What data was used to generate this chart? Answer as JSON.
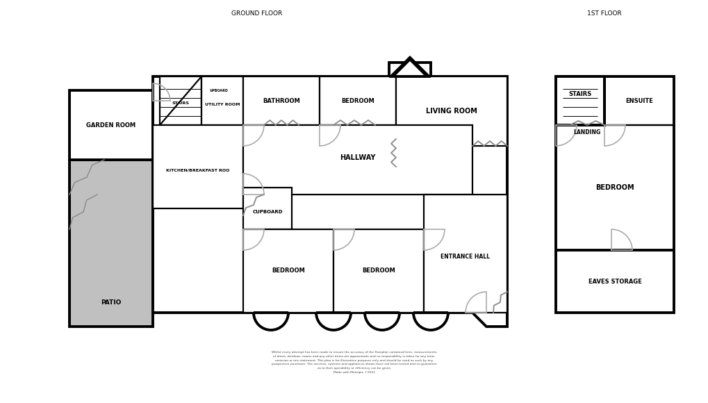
{
  "ground_floor_label": "GROUND FLOOR",
  "first_floor_label": "1ST FLOOR",
  "disclaimer": "Whilst every attempt has been made to ensure the accuracy of the floorplan contained here, measurements\nof doors, windows, rooms and any other items are approximate and no responsibility is taken for any error,\nomission or mis-statement. This plan is for illustrative purposes only and should be used as such by any\nprospective purchaser. The services, systems and appliances shown have not been tested and no guarantee\nas to their operability or efficiency can be given.\nMade with Metropix ©2021",
  "wall_color": "#000000",
  "wall_lw": 2.8,
  "thin_wall_lw": 1.6,
  "bg_color": "#ffffff",
  "patio_fill": "#c0c0c0",
  "door_color": "#aaaaaa",
  "door_lw": 1.2,
  "room_labels": {
    "garden_room": "GARDEN ROOM",
    "kitchen": "KITCHEN/BREAKFAST ROO",
    "utility": "UTILITY ROOM",
    "bathroom": "BATHROOM",
    "bedroom_top": "BEDROOM",
    "living_room": "LIVING ROOM",
    "hallway": "HALLWAY",
    "cupboard": "CUPBOARD",
    "bedroom_bl": "BEDROOM",
    "bedroom_bc": "BEDROOM",
    "entrance_hall": "ENTRANCE HALL",
    "patio": "PATIO",
    "stairs_gf": "STAIRS",
    "upboard_gf": "UPBOARD",
    "stairs_1f": "STAIRS",
    "landing": "LANDING",
    "ensuite": "ENSUITE",
    "bedroom_1f": "BEDROOM",
    "eaves": "EAVES STORAGE"
  }
}
